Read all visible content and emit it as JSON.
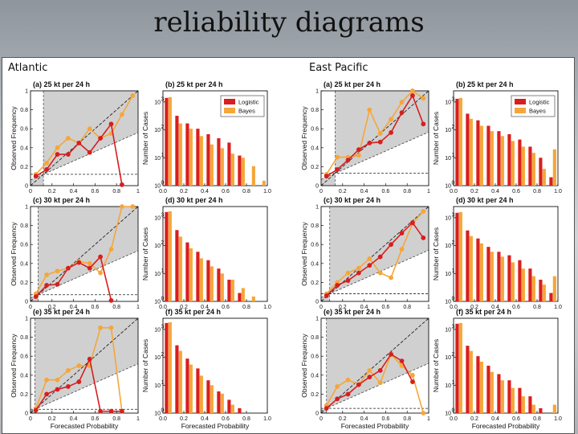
{
  "slide": {
    "title": "reliability diagrams"
  },
  "colors": {
    "logistic": "#d81e1e",
    "bayes": "#f5a63a",
    "shade": "#d0d0d0"
  },
  "chart_data": [
    {
      "region": "Atlantic",
      "type": "reliability-diagram-set",
      "rel_xlabel": "Forecasted Probability",
      "rel_ylabel": "Observed Frequency",
      "hist_ylabel": "Number of Cases",
      "x_ticks": [
        "0",
        "0.2",
        "0.4",
        "0.6",
        "0.8",
        "1"
      ],
      "y_ticks": [
        "0",
        "0.2",
        "0.4",
        "0.6",
        "0.8",
        "1"
      ],
      "hist_x_ticks": [
        "0.0",
        "0.2",
        "0.4",
        "0.6",
        "0.8",
        "1.0"
      ],
      "hist_y_ticks": [
        "10",
        "10",
        "10",
        "10"
      ],
      "hist_y_exps": [
        "0",
        "1",
        "2",
        "3"
      ],
      "legend": [
        "Logistic",
        "Bayes"
      ],
      "panels": [
        {
          "rel_title": "(a) 25 kt per 24 h",
          "hist_title": "(b) 25 kt per 24 h",
          "climatology": 0.12,
          "logistic": {
            "x": [
              0.05,
              0.15,
              0.25,
              0.35,
              0.45,
              0.55,
              0.65,
              0.75,
              0.85
            ],
            "y": [
              0.1,
              0.17,
              0.33,
              0.33,
              0.45,
              0.35,
              0.5,
              0.65,
              0.01
            ]
          },
          "bayes": {
            "x": [
              0.05,
              0.15,
              0.25,
              0.35,
              0.45,
              0.55,
              0.65,
              0.75,
              0.85,
              0.95
            ],
            "y": [
              0.12,
              0.24,
              0.4,
              0.5,
              0.45,
              0.6,
              0.5,
              0.55,
              0.75,
              0.95
            ]
          },
          "hist_logistic": [
            1400,
            320,
            170,
            110,
            70,
            50,
            35,
            12,
            1,
            0
          ],
          "hist_bayes": [
            1500,
            170,
            110,
            60,
            30,
            22,
            14,
            10,
            5,
            1.5
          ]
        },
        {
          "rel_title": "(c) 30 kt per 24 h",
          "hist_title": "(d) 30 kt per 24 h",
          "climatology": 0.07,
          "logistic": {
            "x": [
              0.05,
              0.15,
              0.25,
              0.35,
              0.45,
              0.55,
              0.65,
              0.75
            ],
            "y": [
              0.05,
              0.17,
              0.18,
              0.35,
              0.41,
              0.35,
              0.47,
              0.01
            ]
          },
          "bayes": {
            "x": [
              0.05,
              0.15,
              0.25,
              0.35,
              0.45,
              0.55,
              0.65,
              0.75,
              0.85,
              0.95
            ],
            "y": [
              0.08,
              0.28,
              0.32,
              0.35,
              0.42,
              0.4,
              0.3,
              0.55,
              1.0,
              1.0
            ]
          },
          "hist_logistic": [
            1600,
            360,
            130,
            60,
            30,
            15,
            6,
            2,
            0,
            0
          ],
          "hist_bayes": [
            1700,
            210,
            80,
            35,
            18,
            10,
            6,
            3,
            1.5,
            1
          ]
        },
        {
          "rel_title": "(e) 35 kt per 24 h",
          "hist_title": "(f) 35 kt per 24 h",
          "climatology": 0.04,
          "logistic": {
            "x": [
              0.05,
              0.15,
              0.25,
              0.35,
              0.45,
              0.55,
              0.65,
              0.75,
              0.85
            ],
            "y": [
              0.03,
              0.2,
              0.25,
              0.28,
              0.33,
              0.57,
              0.02,
              0.02,
              0.02
            ]
          },
          "bayes": {
            "x": [
              0.05,
              0.15,
              0.25,
              0.35,
              0.45,
              0.55,
              0.65,
              0.75,
              0.85
            ],
            "y": [
              0.05,
              0.35,
              0.35,
              0.45,
              0.5,
              0.5,
              0.9,
              0.9,
              0.02
            ]
          },
          "hist_logistic": [
            1700,
            270,
            90,
            40,
            15,
            6,
            3,
            1.5,
            0,
            0
          ],
          "hist_bayes": [
            1800,
            170,
            55,
            22,
            10,
            5,
            2,
            1,
            0,
            0
          ]
        }
      ]
    },
    {
      "region": "East Pacific",
      "type": "reliability-diagram-set",
      "rel_xlabel": "Forecasted Probability",
      "rel_ylabel": "Observed Frequency",
      "hist_ylabel": "Number of Cases",
      "x_ticks": [
        "0",
        "0.2",
        "0.4",
        "0.6",
        "0.8",
        "1"
      ],
      "y_ticks": [
        "0",
        "0.2",
        "0.4",
        "0.6",
        "0.8",
        "1"
      ],
      "hist_x_ticks": [
        "0.0",
        "0.2",
        "0.4",
        "0.6",
        "0.8",
        "1.0"
      ],
      "hist_y_ticks": [
        "10",
        "10",
        "10",
        "10"
      ],
      "hist_y_exps": [
        "0",
        "1",
        "2",
        "3"
      ],
      "legend": [
        "Logistic",
        "Bayes"
      ],
      "panels": [
        {
          "rel_title": "(a) 25 kt per 24 h",
          "hist_title": "(b) 25 kt per 24 h",
          "climatology": 0.13,
          "logistic": {
            "x": [
              0.05,
              0.15,
              0.25,
              0.35,
              0.45,
              0.55,
              0.65,
              0.75,
              0.85,
              0.95
            ],
            "y": [
              0.1,
              0.17,
              0.27,
              0.38,
              0.45,
              0.46,
              0.56,
              0.77,
              0.95,
              0.65
            ]
          },
          "bayes": {
            "x": [
              0.05,
              0.15,
              0.25,
              0.35,
              0.45,
              0.55,
              0.65,
              0.75,
              0.85,
              0.95
            ],
            "y": [
              0.12,
              0.3,
              0.3,
              0.32,
              0.8,
              0.55,
              0.7,
              0.88,
              1.0,
              0.92
            ]
          },
          "hist_logistic": [
            1300,
            380,
            220,
            140,
            90,
            70,
            45,
            25,
            10,
            2
          ],
          "hist_bayes": [
            1400,
            250,
            140,
            90,
            60,
            40,
            25,
            15,
            4,
            20
          ]
        },
        {
          "rel_title": "(c) 30 kt per 24 h",
          "hist_title": "(d) 30 kt per 24 h",
          "climatology": 0.08,
          "logistic": {
            "x": [
              0.05,
              0.15,
              0.25,
              0.35,
              0.45,
              0.55,
              0.65,
              0.75,
              0.85,
              0.95
            ],
            "y": [
              0.06,
              0.17,
              0.22,
              0.3,
              0.38,
              0.47,
              0.6,
              0.72,
              0.83,
              0.67
            ]
          },
          "bayes": {
            "x": [
              0.05,
              0.15,
              0.25,
              0.35,
              0.45,
              0.55,
              0.65,
              0.75,
              0.85,
              0.95
            ],
            "y": [
              0.08,
              0.2,
              0.3,
              0.35,
              0.45,
              0.3,
              0.25,
              0.55,
              0.82,
              0.95
            ]
          },
          "hist_logistic": [
            1500,
            350,
            180,
            90,
            60,
            45,
            30,
            15,
            6,
            2
          ],
          "hist_bayes": [
            1600,
            220,
            120,
            60,
            40,
            25,
            15,
            8,
            4,
            8
          ]
        },
        {
          "rel_title": "(e) 35 kt per 24 h",
          "hist_title": "(f) 35 kt per 24 h",
          "climatology": 0.05,
          "logistic": {
            "x": [
              0.05,
              0.15,
              0.25,
              0.35,
              0.45,
              0.55,
              0.65,
              0.75,
              0.85
            ],
            "y": [
              0.05,
              0.15,
              0.2,
              0.3,
              0.38,
              0.45,
              0.62,
              0.55,
              0.33
            ]
          },
          "bayes": {
            "x": [
              0.05,
              0.15,
              0.25,
              0.35,
              0.45,
              0.55,
              0.65,
              0.75,
              0.85,
              0.95
            ],
            "y": [
              0.08,
              0.28,
              0.35,
              0.3,
              0.45,
              0.32,
              0.62,
              0.5,
              0.4,
              0.0
            ]
          },
          "hist_logistic": [
            1600,
            260,
            110,
            50,
            25,
            15,
            8,
            4,
            1.5,
            0
          ],
          "hist_bayes": [
            1700,
            170,
            70,
            30,
            15,
            8,
            4,
            2,
            0,
            2
          ]
        }
      ]
    }
  ]
}
